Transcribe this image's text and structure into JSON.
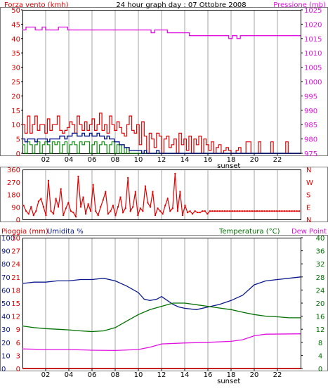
{
  "chart_data": [
    {
      "type": "line",
      "panel": "wind-pressure",
      "title": "24 hour graph day : 07 Ottobre 2008",
      "y_left_label": "Forza vento (kmh)",
      "y_right_label": "Pressione (mb)",
      "x_ticks": [
        "02",
        "04",
        "06",
        "08",
        "10",
        "12",
        "14",
        "16",
        "18",
        "20",
        "22"
      ],
      "x_extra_label": "sunset",
      "y_left_ticks": [
        "0",
        "5",
        "10",
        "15",
        "20",
        "25",
        "30",
        "35",
        "40",
        "45",
        "50"
      ],
      "y_left_range": [
        0,
        50
      ],
      "y_right_ticks": [
        "975",
        "980",
        "985",
        "990",
        "995",
        "1000",
        "1005",
        "1010",
        "1015",
        "1020",
        "1025"
      ],
      "y_right_range": [
        975,
        1025
      ],
      "grid": true,
      "series": {
        "gust": [
          10,
          7,
          13,
          7,
          10,
          13,
          8,
          10,
          10,
          7,
          12,
          8,
          10,
          10,
          13,
          8,
          7,
          8,
          9,
          11,
          10,
          7,
          13,
          10,
          8,
          11,
          8,
          10,
          12,
          8,
          10,
          14,
          8,
          10,
          7,
          13,
          10,
          8,
          11,
          9,
          7,
          6,
          10,
          13,
          8,
          7,
          10,
          3,
          11,
          6,
          0,
          7,
          5,
          2,
          7,
          6,
          0,
          5,
          6,
          2,
          3,
          5,
          0,
          7,
          3,
          5,
          1,
          6,
          0,
          5,
          3,
          6,
          0,
          5,
          3,
          1,
          4,
          0,
          2,
          3,
          0,
          1,
          2,
          1,
          0,
          0,
          1,
          2,
          0,
          0,
          4,
          4,
          0,
          0,
          0,
          4,
          0,
          0,
          0,
          0,
          4,
          0,
          0,
          0,
          0,
          0,
          4,
          0,
          0,
          0,
          0,
          0
        ],
        "mean": [
          5,
          4,
          5,
          5,
          5,
          4,
          5,
          5,
          5,
          5,
          4,
          5,
          5,
          5,
          5,
          6,
          6,
          5,
          6,
          6,
          7,
          7,
          6,
          6,
          7,
          6,
          6,
          7,
          6,
          6,
          7,
          6,
          6,
          5,
          6,
          5,
          5,
          4,
          4,
          3,
          3,
          2,
          2,
          1,
          1,
          1,
          1,
          1,
          0,
          1,
          0,
          0,
          0,
          0,
          1,
          0,
          0,
          0,
          0,
          0,
          0,
          0,
          0,
          0,
          0,
          0,
          0,
          0,
          0,
          0,
          0,
          0,
          0,
          0,
          0,
          0,
          0,
          0,
          0,
          0,
          0,
          0,
          0,
          0,
          0,
          0,
          0,
          0,
          0,
          0,
          0,
          0,
          0,
          0,
          0,
          0,
          0,
          0,
          0,
          0,
          0,
          0,
          0,
          0,
          0,
          0,
          0,
          0,
          0,
          0,
          0,
          0
        ],
        "low": [
          3,
          0,
          4,
          3,
          0,
          3,
          4,
          0,
          3,
          4,
          3,
          0,
          4,
          3,
          4,
          0,
          3,
          4,
          0,
          3,
          4,
          3,
          0,
          4,
          3,
          4,
          4,
          0,
          3,
          4,
          0,
          3,
          4,
          3,
          0,
          3,
          4,
          0,
          3,
          0,
          3,
          0,
          2,
          0,
          0,
          0,
          0,
          0,
          0,
          0,
          0,
          0,
          0,
          0,
          0,
          0,
          0,
          0,
          0,
          0,
          0,
          0,
          0,
          0,
          0,
          0,
          0,
          0,
          0,
          0,
          0,
          0,
          0,
          0,
          0,
          0,
          0,
          0,
          0,
          0,
          0,
          0,
          0,
          0,
          0,
          0,
          0,
          0,
          0,
          0,
          0,
          0,
          0,
          0,
          0,
          0,
          0,
          0,
          0,
          0,
          0,
          0,
          0,
          0,
          0,
          0,
          0,
          0,
          0,
          0,
          0,
          0
        ],
        "pressure": [
          [
            0,
            1018
          ],
          [
            0.3,
            1019
          ],
          [
            1.1,
            1018
          ],
          [
            1.7,
            1019
          ],
          [
            2,
            1018
          ],
          [
            3.1,
            1019
          ],
          [
            3.9,
            1018
          ],
          [
            11,
            1018
          ],
          [
            11.1,
            1017
          ],
          [
            11.4,
            1018
          ],
          [
            12.2,
            1018
          ],
          [
            12.5,
            1017
          ],
          [
            14.4,
            1016
          ],
          [
            17.6,
            1016
          ],
          [
            17.8,
            1015
          ],
          [
            18.1,
            1016
          ],
          [
            18.5,
            1015
          ],
          [
            18.8,
            1016
          ],
          [
            24,
            1016
          ]
        ]
      }
    },
    {
      "type": "scatter",
      "panel": "wind-direction",
      "y_ticks": [
        "0",
        "90",
        "180",
        "270",
        "360"
      ],
      "y_range": [
        0,
        360
      ],
      "right_labels": [
        "N",
        "W",
        "S",
        "E",
        "N"
      ],
      "direction": [
        100,
        60,
        40,
        90,
        30,
        60,
        130,
        150,
        90,
        30,
        280,
        60,
        40,
        150,
        90,
        220,
        30,
        80,
        120,
        60,
        50,
        20,
        310,
        90,
        160,
        40,
        110,
        60,
        250,
        60,
        30,
        90,
        140,
        200,
        40,
        60,
        100,
        30,
        90,
        160,
        50,
        80,
        300,
        60,
        90,
        200,
        30,
        80,
        60,
        240,
        120,
        90,
        200,
        30,
        80,
        60,
        40,
        100,
        150,
        60,
        80,
        330,
        60,
        200,
        30,
        100,
        50,
        60,
        40,
        60,
        50,
        50,
        60,
        60,
        40,
        60,
        60,
        60,
        60,
        60,
        60,
        60,
        60,
        60,
        60,
        60,
        60,
        60,
        60,
        60,
        60,
        60,
        60,
        60,
        60,
        60,
        60,
        60,
        60,
        60,
        60,
        60,
        60,
        60,
        60,
        60,
        60,
        60,
        60,
        60,
        60,
        60
      ]
    },
    {
      "type": "line",
      "panel": "temp-humidity-rain",
      "labels": {
        "rain": "Pioggia (mm)",
        "humidity": "Umidita %",
        "temperature": "Temperatura (°C)",
        "dewpoint": "Dew Point"
      },
      "x_ticks": [
        "02",
        "04",
        "06",
        "08",
        "10",
        "12",
        "14",
        "16",
        "18",
        "20",
        "22"
      ],
      "x_extra_label": "sunset",
      "rain_ticks": [
        "0",
        "3",
        "6",
        "9",
        "12",
        "15",
        "18",
        "21",
        "24",
        "27",
        "30"
      ],
      "humidity_ticks": [
        "0",
        "10",
        "20",
        "30",
        "40",
        "50",
        "60",
        "70",
        "80",
        "90",
        "100"
      ],
      "temp_ticks": [
        "0",
        "4",
        "8",
        "12",
        "16",
        "20",
        "24",
        "28",
        "32",
        "36",
        "40"
      ],
      "temp_range": [
        0,
        40
      ],
      "humidity_range": [
        0,
        100
      ],
      "rain_range": [
        0,
        30
      ],
      "series": {
        "humidity": [
          [
            0,
            65
          ],
          [
            1,
            66
          ],
          [
            2,
            66
          ],
          [
            3,
            67
          ],
          [
            4,
            67
          ],
          [
            5,
            68
          ],
          [
            6,
            68
          ],
          [
            7,
            69
          ],
          [
            8,
            67
          ],
          [
            9,
            63
          ],
          [
            10,
            58
          ],
          [
            10.5,
            53
          ],
          [
            11,
            52
          ],
          [
            11.6,
            53
          ],
          [
            12,
            55
          ],
          [
            12.5,
            52
          ],
          [
            13,
            49
          ],
          [
            13.5,
            47
          ],
          [
            14,
            46
          ],
          [
            15,
            45
          ],
          [
            16,
            47
          ],
          [
            17,
            49
          ],
          [
            18,
            52
          ],
          [
            19,
            56
          ],
          [
            19.5,
            60
          ],
          [
            20,
            64
          ],
          [
            21,
            67
          ],
          [
            22,
            68
          ],
          [
            23,
            69
          ],
          [
            24,
            70
          ]
        ],
        "temperature": [
          [
            0,
            13
          ],
          [
            1,
            12.5
          ],
          [
            2,
            12.2
          ],
          [
            3,
            12
          ],
          [
            4,
            11.8
          ],
          [
            5,
            11.5
          ],
          [
            6,
            11.3
          ],
          [
            7,
            11.5
          ],
          [
            8,
            12.5
          ],
          [
            9,
            14.5
          ],
          [
            10,
            16.5
          ],
          [
            11,
            18
          ],
          [
            12,
            19
          ],
          [
            13,
            20
          ],
          [
            14,
            20
          ],
          [
            15,
            19.5
          ],
          [
            16,
            19
          ],
          [
            17,
            18.5
          ],
          [
            18,
            18
          ],
          [
            19,
            17.2
          ],
          [
            20,
            16.5
          ],
          [
            21,
            16
          ],
          [
            22,
            15.8
          ],
          [
            23,
            15.5
          ],
          [
            24,
            15.5
          ]
        ],
        "dewpoint": [
          [
            0,
            6
          ],
          [
            2,
            5.8
          ],
          [
            4,
            5.8
          ],
          [
            6,
            5.6
          ],
          [
            8,
            5.5
          ],
          [
            10,
            5.8
          ],
          [
            11,
            6.5
          ],
          [
            12,
            7.5
          ],
          [
            14,
            7.8
          ],
          [
            16,
            8
          ],
          [
            18,
            8.3
          ],
          [
            19,
            8.8
          ],
          [
            20,
            10
          ],
          [
            21,
            10.5
          ],
          [
            24,
            10.6
          ]
        ],
        "rain": [
          [
            0,
            0
          ],
          [
            24,
            0
          ]
        ]
      }
    }
  ],
  "colors": {
    "wind": "#e00000",
    "mean": "#0a1a8a",
    "low": "#109010",
    "pressure": "#e010e0",
    "humidity": "#0a1a8a",
    "temperature": "#007000",
    "dewpoint": "#e010e0",
    "title": "#000000"
  }
}
